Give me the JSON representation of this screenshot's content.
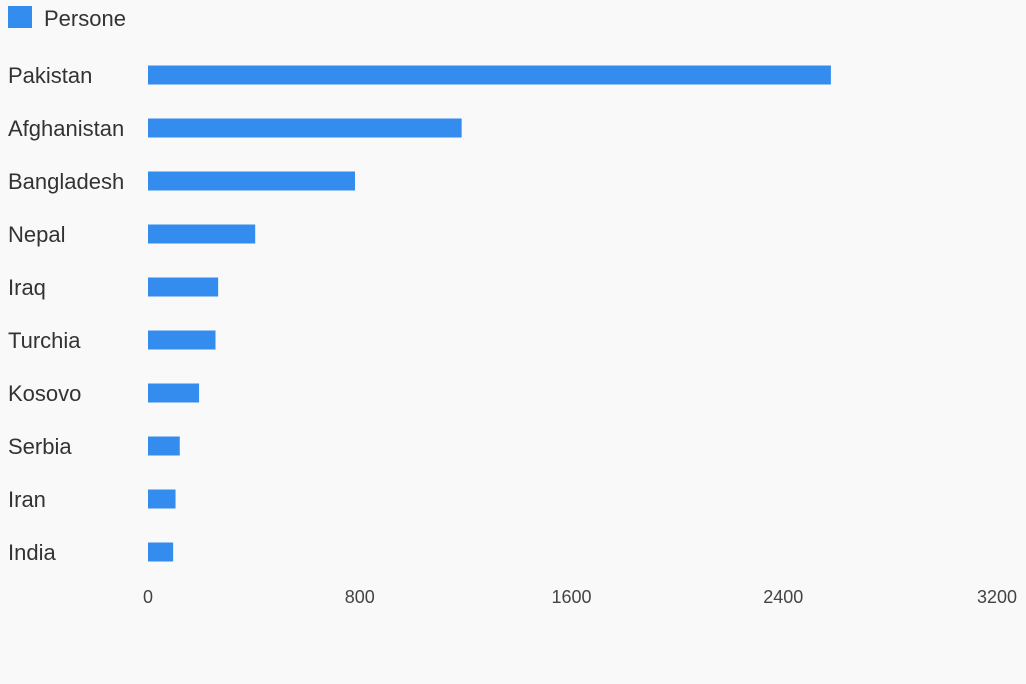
{
  "chart_data": {
    "type": "bar",
    "orientation": "horizontal",
    "categories": [
      "Pakistan",
      "Afghanistan",
      "Bangladesh",
      "Nepal",
      "Iraq",
      "Turchia",
      "Kosovo",
      "Serbia",
      "Iran",
      "India"
    ],
    "series": [
      {
        "name": "Persone",
        "values": [
          2580,
          1185,
          782,
          405,
          265,
          255,
          193,
          120,
          104,
          95
        ],
        "color": "#338cee"
      }
    ],
    "xlim": [
      0,
      3200
    ],
    "xticks": [
      "0",
      "800",
      "1600",
      "2400",
      "3200"
    ],
    "legend_position": "top-left",
    "grid": false
  },
  "colors": {
    "background": "#f9f9f9",
    "bar": "#338cee",
    "text": "#333333"
  }
}
